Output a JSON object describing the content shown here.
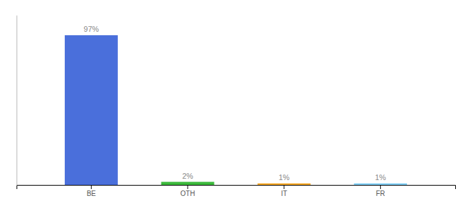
{
  "chart_data": {
    "type": "bar",
    "categories": [
      "BE",
      "OTH",
      "IT",
      "FR"
    ],
    "values": [
      97,
      2,
      1,
      1
    ],
    "value_labels": [
      "97%",
      "2%",
      "1%",
      "1%"
    ],
    "colors": [
      "#4a6fdb",
      "#3dba3d",
      "#f5a623",
      "#7ecef5"
    ],
    "ylim": [
      0,
      110
    ],
    "data_labels": true,
    "tick_labels": "x",
    "grid": false
  }
}
